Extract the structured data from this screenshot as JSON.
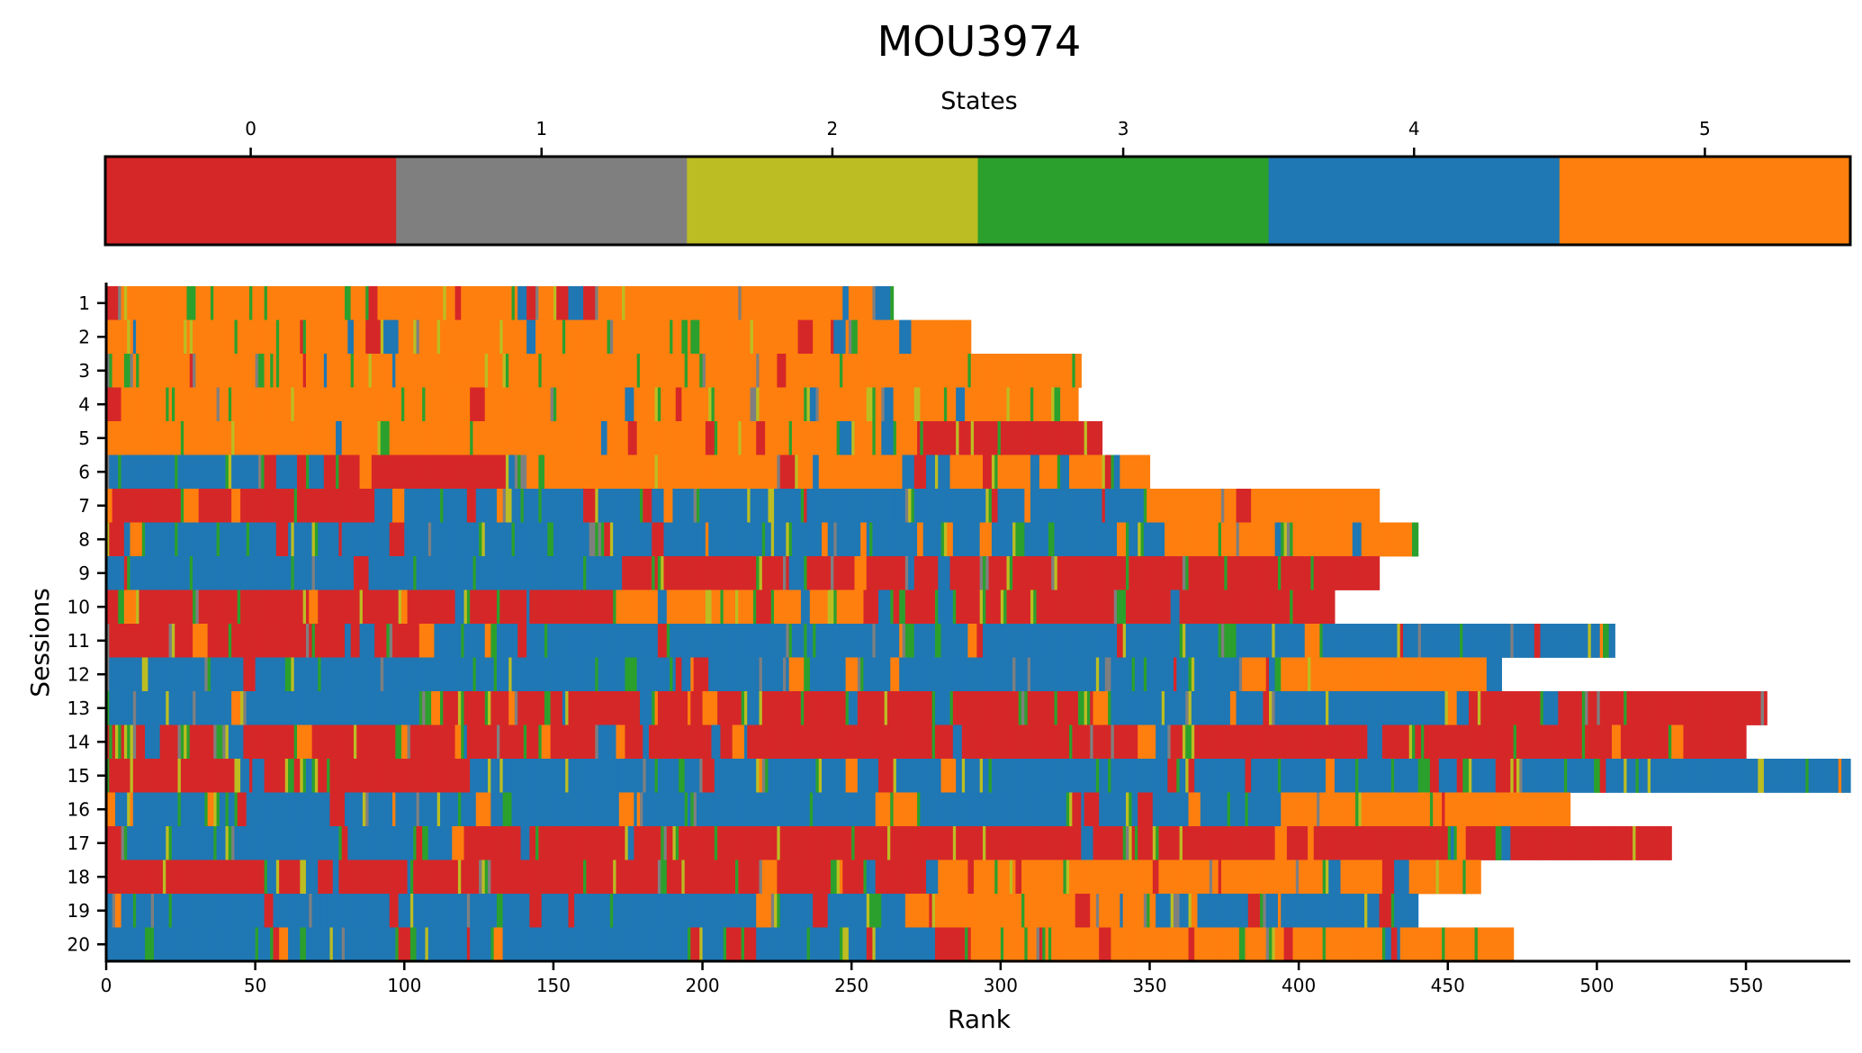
{
  "chart_data": {
    "type": "heatmap",
    "title": "MOU3974",
    "colorbar": {
      "label": "States",
      "ticks": [
        "0",
        "1",
        "2",
        "3",
        "4",
        "5"
      ],
      "state_colors": [
        "#d62728",
        "#7f7f7f",
        "#bcbd22",
        "#2ca02c",
        "#1f77b4",
        "#ff7f0e"
      ]
    },
    "xlabel": "Rank",
    "ylabel": "Sessions",
    "xlim": [
      0,
      585
    ],
    "xticks": [
      0,
      50,
      100,
      150,
      200,
      250,
      300,
      350,
      400,
      450,
      500,
      550
    ],
    "sessions": [
      {
        "label": "1",
        "length": 264,
        "dominant": [
          5,
          5,
          5,
          5,
          5
        ]
      },
      {
        "label": "2",
        "length": 290,
        "dominant": [
          5,
          5,
          5,
          5,
          5
        ]
      },
      {
        "label": "3",
        "length": 327,
        "dominant": [
          5,
          5,
          5,
          5,
          5
        ]
      },
      {
        "label": "4",
        "length": 326,
        "dominant": [
          5,
          5,
          5,
          5,
          5
        ]
      },
      {
        "label": "5",
        "length": 334,
        "dominant": [
          5,
          5,
          5,
          5,
          0
        ]
      },
      {
        "label": "6",
        "length": 350,
        "dominant": [
          4,
          0,
          5,
          5,
          5
        ]
      },
      {
        "label": "7",
        "length": 427,
        "dominant": [
          0,
          4,
          4,
          4,
          5
        ]
      },
      {
        "label": "8",
        "length": 440,
        "dominant": [
          4,
          4,
          4,
          4,
          5
        ]
      },
      {
        "label": "9",
        "length": 427,
        "dominant": [
          4,
          4,
          0,
          0,
          0
        ]
      },
      {
        "label": "10",
        "length": 412,
        "dominant": [
          0,
          0,
          5,
          0,
          0
        ]
      },
      {
        "label": "11",
        "length": 506,
        "dominant": [
          0,
          4,
          4,
          4,
          4
        ]
      },
      {
        "label": "12",
        "length": 468,
        "dominant": [
          4,
          4,
          4,
          4,
          5
        ]
      },
      {
        "label": "13",
        "length": 557,
        "dominant": [
          4,
          0,
          0,
          4,
          0
        ]
      },
      {
        "label": "14",
        "length": 550,
        "dominant": [
          0,
          0,
          0,
          0,
          0
        ]
      },
      {
        "label": "15",
        "length": 585,
        "dominant": [
          0,
          4,
          4,
          4,
          4
        ]
      },
      {
        "label": "16",
        "length": 491,
        "dominant": [
          4,
          4,
          4,
          4,
          5
        ]
      },
      {
        "label": "17",
        "length": 525,
        "dominant": [
          4,
          0,
          0,
          0,
          0
        ]
      },
      {
        "label": "18",
        "length": 461,
        "dominant": [
          0,
          0,
          0,
          5,
          5
        ]
      },
      {
        "label": "19",
        "length": 440,
        "dominant": [
          4,
          4,
          4,
          5,
          4
        ]
      },
      {
        "label": "20",
        "length": 472,
        "dominant": [
          4,
          4,
          4,
          5,
          5
        ]
      }
    ]
  }
}
